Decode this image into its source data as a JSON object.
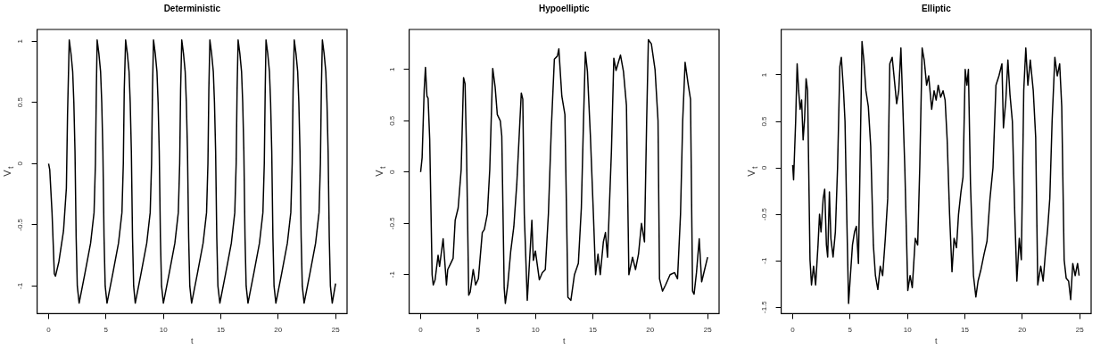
{
  "chart_data": [
    {
      "type": "line",
      "title": "Deterministic",
      "xlabel": "t",
      "ylabel": "V$_{t}$",
      "xlim": [
        -1,
        26
      ],
      "xticks": [
        0,
        5,
        10,
        15,
        20,
        25
      ],
      "ylim": [
        -1.226,
        1.096
      ],
      "yticks": [
        -1,
        -0.5,
        0,
        0.5,
        1
      ],
      "grid": false,
      "legend": false,
      "marker": "none",
      "line_style": "solid",
      "series": [
        {
          "color": "#000000",
          "x": [
            0,
            0.1,
            0.3,
            0.5,
            0.6,
            0.9,
            1.3,
            1.55,
            1.65,
            1.8,
            1.95,
            2.1,
            2.2,
            2.3,
            2.4,
            2.5,
            2.66,
            3.16,
            3.66,
            3.96,
            4.08,
            4.16,
            4.23,
            4.38,
            4.53,
            4.63,
            4.73,
            4.83,
            4.93,
            5.09,
            5.59,
            6.09,
            6.39,
            6.51,
            6.59,
            6.71,
            6.86,
            7.01,
            7.11,
            7.21,
            7.31,
            7.41,
            7.55,
            8.05,
            8.55,
            8.85,
            8.97,
            9.05,
            9.14,
            9.29,
            9.44,
            9.54,
            9.64,
            9.74,
            9.84,
            10.0,
            10.5,
            11.0,
            11.3,
            11.42,
            11.5,
            11.6,
            11.75,
            11.9,
            12.0,
            12.1,
            12.2,
            12.3,
            12.46,
            12.96,
            13.46,
            13.76,
            13.88,
            13.96,
            14.05,
            14.2,
            14.35,
            14.45,
            14.55,
            14.65,
            14.75,
            14.92,
            15.42,
            15.92,
            16.22,
            16.34,
            16.42,
            16.51,
            16.66,
            16.81,
            16.91,
            17.01,
            17.11,
            17.21,
            17.37,
            17.87,
            18.37,
            18.67,
            18.79,
            18.87,
            18.94,
            19.09,
            19.24,
            19.34,
            19.44,
            19.54,
            19.64,
            19.8,
            20.3,
            20.8,
            21.1,
            21.22,
            21.3,
            21.4,
            21.55,
            21.7,
            21.8,
            21.9,
            22.0,
            22.1,
            22.26,
            22.76,
            23.26,
            23.56,
            23.68,
            23.76,
            23.85,
            24.0,
            24.15,
            24.25,
            24.35,
            24.45,
            24.55,
            24.71,
            25.0
          ],
          "values": [
            0,
            -0.05,
            -0.4,
            -0.9,
            -0.92,
            -0.8,
            -0.55,
            -0.2,
            0.4,
            1.01,
            0.9,
            0.75,
            0.5,
            0.1,
            -0.6,
            -1.0,
            -1.14,
            -0.9,
            -0.65,
            -0.4,
            0.0,
            0.6,
            1.01,
            0.9,
            0.75,
            0.5,
            0.1,
            -0.6,
            -1.0,
            -1.14,
            -0.9,
            -0.65,
            -0.4,
            0.0,
            0.6,
            1.01,
            0.9,
            0.75,
            0.5,
            0.1,
            -0.6,
            -1.0,
            -1.14,
            -0.9,
            -0.65,
            -0.4,
            0.0,
            0.6,
            1.01,
            0.9,
            0.75,
            0.5,
            0.1,
            -0.6,
            -1.0,
            -1.14,
            -0.9,
            -0.65,
            -0.4,
            0.0,
            0.6,
            1.01,
            0.9,
            0.75,
            0.5,
            0.1,
            -0.6,
            -1.0,
            -1.14,
            -0.9,
            -0.65,
            -0.4,
            0.0,
            0.6,
            1.01,
            0.9,
            0.75,
            0.5,
            0.1,
            -0.6,
            -1.0,
            -1.14,
            -0.9,
            -0.65,
            -0.4,
            0.0,
            0.6,
            1.01,
            0.9,
            0.75,
            0.5,
            0.1,
            -0.6,
            -1.0,
            -1.14,
            -0.9,
            -0.65,
            -0.4,
            0.0,
            0.6,
            1.01,
            0.9,
            0.75,
            0.5,
            0.1,
            -0.6,
            -1.0,
            -1.14,
            -0.9,
            -0.65,
            -0.4,
            0.0,
            0.6,
            1.01,
            0.9,
            0.75,
            0.5,
            0.1,
            -0.6,
            -1.0,
            -1.14,
            -0.9,
            -0.65,
            -0.4,
            0.0,
            0.6,
            1.01,
            0.9,
            0.75,
            0.5,
            0.1,
            -0.6,
            -1.0,
            -1.14,
            -0.98
          ]
        }
      ]
    },
    {
      "type": "line",
      "title": "Hypoelliptic",
      "xlabel": "t",
      "ylabel": "V$_{t}$",
      "xlim": [
        -1,
        26
      ],
      "xticks": [
        0,
        5,
        10,
        15,
        20,
        25
      ],
      "ylim": [
        -1.38,
        1.39
      ],
      "yticks": [
        -1,
        -0.5,
        0,
        0.5,
        1
      ],
      "grid": false,
      "legend": false,
      "marker": "none",
      "line_style": "solid",
      "series": [
        {
          "color": "#000000",
          "x": [
            0,
            0.13,
            0.31,
            0.42,
            0.55,
            0.65,
            0.79,
            1.0,
            1.1,
            1.26,
            1.52,
            1.65,
            1.96,
            2.25,
            2.36,
            2.62,
            2.83,
            3.01,
            3.27,
            3.53,
            3.74,
            3.87,
            4.0,
            4.19,
            4.32,
            4.58,
            4.79,
            5.03,
            5.37,
            5.55,
            5.81,
            6.02,
            6.28,
            6.49,
            6.68,
            6.94,
            7.07,
            7.28,
            7.38,
            7.59,
            7.85,
            8.12,
            8.38,
            8.77,
            8.9,
            9.03,
            9.29,
            9.42,
            9.69,
            9.82,
            10.0,
            10.34,
            10.6,
            10.86,
            11.13,
            11.39,
            11.65,
            11.91,
            12.04,
            12.3,
            12.57,
            12.83,
            13.09,
            13.4,
            13.74,
            14.0,
            14.19,
            14.35,
            14.53,
            14.79,
            15.05,
            15.24,
            15.45,
            15.65,
            15.92,
            16.1,
            16.28,
            16.62,
            16.83,
            17.02,
            17.41,
            17.67,
            17.93,
            18.14,
            18.46,
            18.72,
            18.98,
            19.24,
            19.5,
            19.69,
            19.84,
            20.1,
            20.42,
            20.68,
            20.81,
            21.07,
            21.34,
            21.73,
            22.12,
            22.38,
            22.64,
            22.83,
            23.04,
            23.3,
            23.51,
            23.69,
            23.82,
            24.03,
            24.27,
            24.48,
            24.74,
            25.0
          ],
          "values": [
            0,
            0.14,
            0.8,
            1.02,
            0.74,
            0.72,
            0.32,
            -1.0,
            -1.1,
            -1.05,
            -0.81,
            -0.92,
            -0.65,
            -1.1,
            -0.95,
            -0.89,
            -0.84,
            -0.47,
            -0.35,
            0.02,
            0.92,
            0.86,
            0.2,
            -1.2,
            -1.17,
            -0.95,
            -1.1,
            -1.04,
            -0.59,
            -0.56,
            -0.41,
            0.02,
            1.01,
            0.83,
            0.56,
            0.5,
            0.35,
            -1.13,
            -1.28,
            -1.1,
            -0.77,
            -0.53,
            -0.11,
            0.77,
            0.71,
            -0.41,
            -1.25,
            -1.0,
            -0.47,
            -0.86,
            -0.77,
            -1.05,
            -0.98,
            -0.95,
            -0.41,
            0.44,
            1.1,
            1.13,
            1.2,
            0.74,
            0.56,
            -1.22,
            -1.25,
            -1.0,
            -0.89,
            -0.35,
            0.5,
            1.17,
            0.98,
            0.35,
            -0.41,
            -1.0,
            -0.8,
            -1.0,
            -0.68,
            -0.59,
            -0.83,
            0.2,
            1.11,
            0.99,
            1.14,
            0.98,
            0.65,
            -1.0,
            -0.83,
            -0.95,
            -0.8,
            -0.5,
            -0.68,
            0.5,
            1.29,
            1.25,
            1.0,
            0.5,
            -1.04,
            -1.16,
            -1.1,
            -1.0,
            -0.98,
            -1.04,
            -0.41,
            0.5,
            1.07,
            0.86,
            0.71,
            -1.16,
            -1.19,
            -0.98,
            -0.65,
            -1.07,
            -0.95,
            -0.83
          ]
        }
      ]
    },
    {
      "type": "line",
      "title": "Elliptic",
      "xlabel": "t",
      "ylabel": "V$_{t}$",
      "xlim": [
        -1,
        26
      ],
      "xticks": [
        0,
        5,
        10,
        15,
        20,
        25
      ],
      "ylim": [
        -1.57,
        1.49
      ],
      "yticks": [
        -1.5,
        -1,
        -0.5,
        0,
        0.5,
        1
      ],
      "grid": false,
      "legend": false,
      "marker": "none",
      "line_style": "solid",
      "series": [
        {
          "color": "#000000",
          "x": [
            0,
            0.08,
            0.26,
            0.39,
            0.52,
            0.65,
            0.78,
            0.91,
            1.04,
            1.17,
            1.3,
            1.51,
            1.64,
            1.82,
            2.0,
            2.21,
            2.34,
            2.47,
            2.66,
            2.79,
            2.94,
            3.05,
            3.2,
            3.33,
            3.52,
            3.72,
            3.91,
            4.11,
            4.24,
            4.43,
            4.56,
            4.71,
            4.87,
            5.03,
            5.21,
            5.39,
            5.55,
            5.73,
            5.86,
            6.04,
            6.2,
            6.38,
            6.59,
            6.8,
            7.03,
            7.21,
            7.42,
            7.63,
            7.84,
            8.07,
            8.28,
            8.46,
            8.67,
            8.85,
            9.06,
            9.24,
            9.43,
            9.58,
            9.77,
            10.03,
            10.23,
            10.42,
            10.68,
            10.89,
            11.07,
            11.28,
            11.46,
            11.67,
            11.85,
            12.11,
            12.32,
            12.5,
            12.68,
            12.89,
            13.1,
            13.28,
            13.46,
            13.67,
            13.88,
            14.06,
            14.27,
            14.45,
            14.66,
            14.84,
            15.03,
            15.18,
            15.31,
            15.49,
            15.75,
            15.96,
            16.15,
            16.41,
            16.67,
            16.93,
            17.19,
            17.45,
            17.71,
            17.97,
            18.23,
            18.36,
            18.57,
            18.75,
            18.93,
            19.14,
            19.35,
            19.53,
            19.74,
            19.92,
            20.13,
            20.31,
            20.49,
            20.7,
            20.96,
            21.17,
            21.35,
            21.61,
            21.82,
            22.01,
            22.21,
            22.4,
            22.6,
            22.84,
            23.05,
            23.26,
            23.44,
            23.65,
            23.83,
            24.04,
            24.22,
            24.4,
            24.61,
            24.82,
            24.95
          ],
          "values": [
            0.03,
            -0.13,
            0.5,
            1.12,
            0.83,
            0.63,
            0.73,
            0.3,
            0.53,
            0.96,
            0.83,
            -0.99,
            -1.26,
            -1.06,
            -1.26,
            -0.83,
            -0.5,
            -0.69,
            -0.33,
            -0.23,
            -0.83,
            -0.96,
            -0.26,
            -0.76,
            -0.96,
            -0.69,
            0.0,
            1.09,
            1.19,
            0.83,
            0.5,
            -0.5,
            -1.46,
            -1.16,
            -0.83,
            -0.69,
            -0.63,
            -1.03,
            -0.03,
            1.36,
            1.16,
            0.83,
            0.66,
            0.23,
            -0.83,
            -1.16,
            -1.31,
            -1.06,
            -1.16,
            -0.76,
            -0.33,
            1.12,
            1.19,
            0.96,
            0.69,
            0.83,
            1.29,
            0.73,
            0.0,
            -1.32,
            -1.16,
            -1.29,
            -0.76,
            -0.83,
            0.0,
            1.29,
            1.16,
            0.89,
            0.99,
            0.63,
            0.83,
            0.73,
            0.89,
            0.76,
            0.83,
            0.73,
            0.3,
            -0.5,
            -1.12,
            -0.76,
            -0.86,
            -0.5,
            -0.26,
            -0.1,
            1.06,
            0.89,
            1.06,
            -0.17,
            -1.16,
            -1.39,
            -1.22,
            -1.09,
            -0.93,
            -0.79,
            -0.33,
            0.0,
            0.89,
            0.99,
            1.12,
            0.43,
            0.73,
            1.16,
            0.79,
            0.5,
            -0.5,
            -1.22,
            -0.76,
            -0.99,
            0.83,
            1.29,
            0.89,
            1.16,
            0.83,
            0.33,
            -1.26,
            -1.06,
            -1.22,
            -0.93,
            -0.66,
            -0.33,
            0.5,
            1.19,
            0.99,
            1.12,
            0.66,
            -0.99,
            -1.19,
            -1.22,
            -1.42,
            -1.03,
            -1.16,
            -1.03,
            -1.16
          ]
        }
      ]
    }
  ]
}
